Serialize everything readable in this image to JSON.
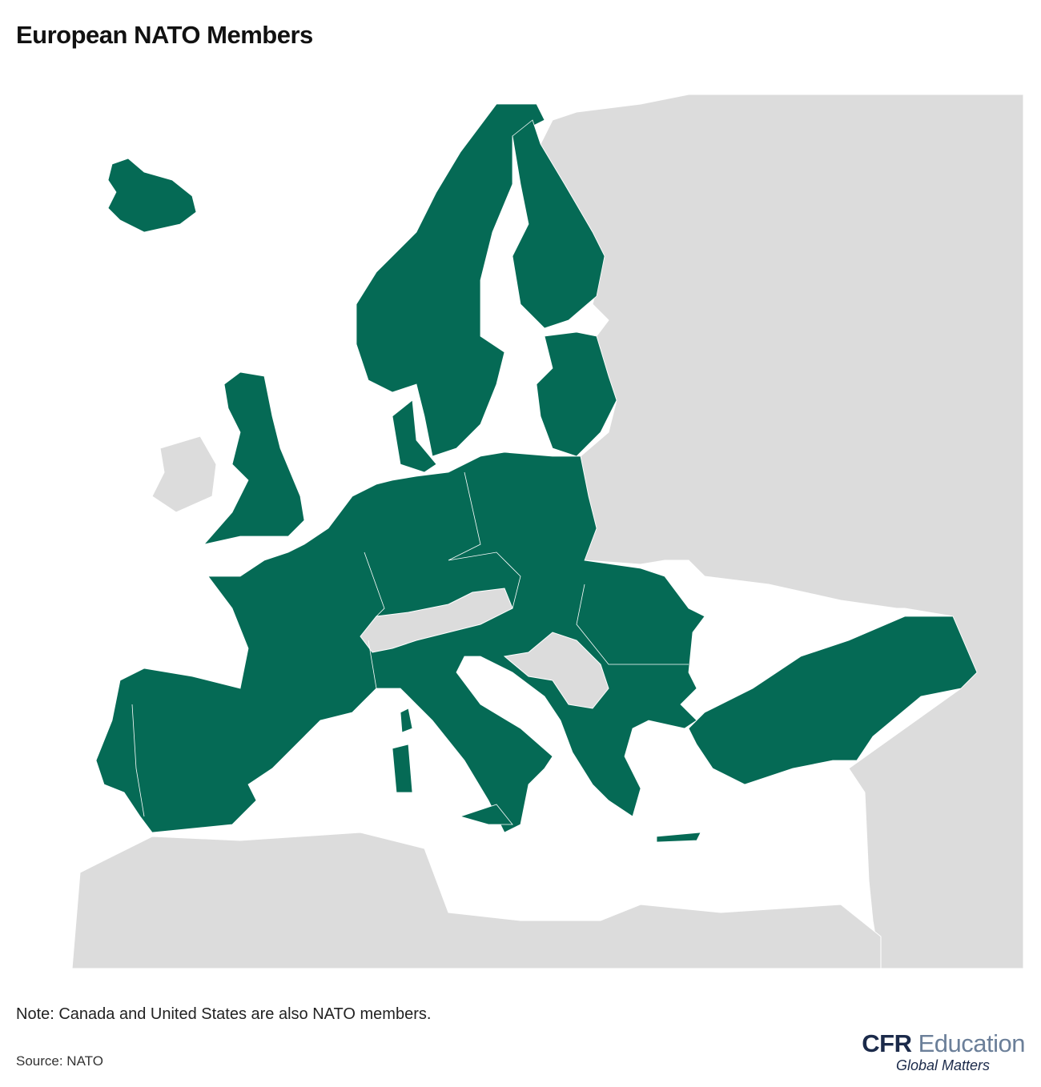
{
  "header": {
    "title": "European NATO Members"
  },
  "footer": {
    "note": "Note: Canada and United States are also NATO members.",
    "source": "Source: NATO"
  },
  "logo": {
    "brand": "CFR",
    "name": "Education",
    "tagline": "Global Matters"
  }
}
